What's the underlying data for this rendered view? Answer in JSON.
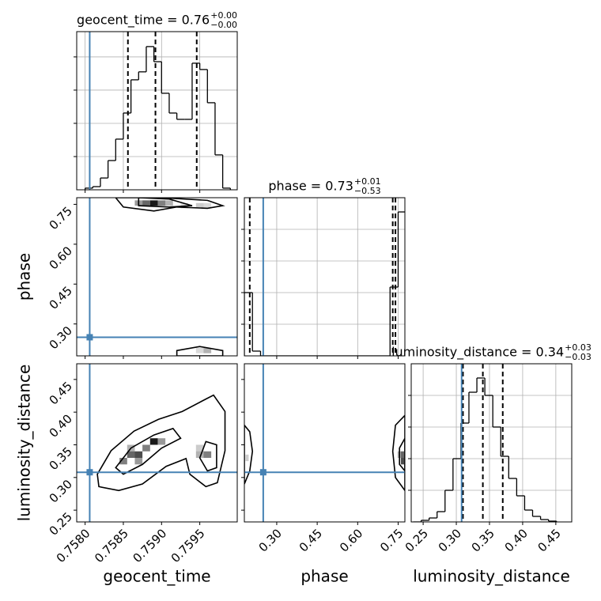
{
  "chart_data": [
    {
      "type": "histogram",
      "title": {
        "text": "geocent_time = 0.76",
        "upper": "+0.00",
        "lower": "−0.00"
      },
      "xlim": [
        0.75789,
        0.75999
      ],
      "xticks": [
        0.758,
        0.7585,
        0.759,
        0.7595
      ],
      "ylim": [
        0,
        952
      ],
      "yticks": [
        200,
        400,
        600,
        800
      ],
      "grid": true,
      "bins": [
        0.758,
        0.7581,
        0.7582,
        0.7583,
        0.7584,
        0.7585,
        0.7586,
        0.7587,
        0.7588,
        0.7589,
        0.759,
        0.7591,
        0.7592,
        0.7593,
        0.7594,
        0.7595,
        0.7596,
        0.7597,
        0.7598,
        0.7599
      ],
      "values": [
        10,
        19,
        71,
        176,
        305,
        462,
        662,
        710,
        862,
        771,
        581,
        462,
        424,
        424,
        762,
        724,
        524,
        210,
        10
      ],
      "quantiles": [
        0.75856,
        0.75892,
        0.75946
      ],
      "truth_x": 0.75806,
      "color": "#000000",
      "truth_color": "#4682b4"
    },
    {
      "type": "density",
      "ylabel": "phase",
      "xlim": [
        0.75789,
        0.75999
      ],
      "xticks": [
        0.758,
        0.7585,
        0.759,
        0.7595
      ],
      "ylim": [
        0.18,
        0.775
      ],
      "yticks": [
        {
          "value": 0.3,
          "label": "0.30"
        },
        {
          "value": 0.45,
          "label": "0.45"
        },
        {
          "value": 0.6,
          "label": "0.60"
        },
        {
          "value": 0.75,
          "label": "0.75"
        }
      ],
      "grid": false,
      "bin_width": [
        0.0001,
        0.02
      ],
      "cells": {
        "x": [
          0.7587,
          0.7588,
          0.7589,
          0.759,
          0.7591,
          0.7593,
          0.7595,
          0.7596,
          0.7595,
          0.7596
        ],
        "y": [
          0.755,
          0.755,
          0.755,
          0.755,
          0.755,
          0.745,
          0.745,
          0.745,
          0.2,
          0.2
        ],
        "values": [
          0.4,
          0.6,
          0.9,
          0.5,
          0.3,
          0.15,
          0.2,
          0.15,
          0.15,
          0.3
        ]
      },
      "contours": [
        {
          "x": [
            0.7584,
            0.759,
            0.7596,
            0.7598,
            0.7596,
            0.7592,
            0.7589,
            0.7585
          ],
          "y": [
            0.775,
            0.775,
            0.765,
            0.745,
            0.735,
            0.74,
            0.725,
            0.74
          ]
        },
        {
          "x": [
            0.7587,
            0.7591,
            0.7594,
            0.7591,
            0.7587
          ],
          "y": [
            0.775,
            0.77,
            0.745,
            0.74,
            0.745
          ]
        },
        {
          "x": [
            0.7592,
            0.7592,
            0.7595,
            0.7598,
            0.7598
          ],
          "y": [
            0.18,
            0.2,
            0.215,
            0.2,
            0.18
          ]
        }
      ],
      "truth_x": 0.75806,
      "truth_y": 0.25,
      "color": "#000000",
      "truth_color": "#4682b4"
    },
    {
      "type": "histogram",
      "title": {
        "text": "phase = 0.73",
        "upper": "+0.01",
        "lower": "−0.53"
      },
      "xlim": [
        0.18,
        0.775
      ],
      "xticks": [
        0.3,
        0.45,
        0.6,
        0.75
      ],
      "ylim": [
        0,
        2000
      ],
      "yticks": [
        400,
        800,
        1200,
        1600
      ],
      "grid": true,
      "bins": [
        0.18,
        0.21,
        0.24,
        0.27,
        0.3,
        0.33,
        0.36,
        0.39,
        0.42,
        0.45,
        0.48,
        0.51,
        0.54,
        0.57,
        0.6,
        0.63,
        0.66,
        0.69,
        0.72,
        0.75,
        0.78
      ],
      "values": [
        800,
        60,
        0,
        0,
        0,
        0,
        0,
        0,
        0,
        0,
        0,
        0,
        0,
        0,
        0,
        0,
        0,
        0,
        870,
        1820
      ],
      "quantiles": [
        0.2,
        0.73,
        0.74
      ],
      "truth_x": 0.25,
      "color": "#000000",
      "truth_color": "#4682b4"
    },
    {
      "type": "density",
      "xlabel": "geocent_time",
      "ylabel": "luminosity_distance",
      "xlim": [
        0.75789,
        0.75999
      ],
      "xticks": [
        {
          "value": 0.758,
          "label": "0.7580"
        },
        {
          "value": 0.7585,
          "label": "0.7585"
        },
        {
          "value": 0.759,
          "label": "0.7590"
        },
        {
          "value": 0.7595,
          "label": "0.7595"
        }
      ],
      "ylim": [
        0.232,
        0.474
      ],
      "yticks": [
        {
          "value": 0.25,
          "label": "0.25"
        },
        {
          "value": 0.3,
          "label": "0.30"
        },
        {
          "value": 0.35,
          "label": "0.35"
        },
        {
          "value": 0.4,
          "label": "0.40"
        },
        {
          "value": 0.45,
          "label": "0.45"
        }
      ],
      "grid": false,
      "bin_width": [
        0.0001,
        0.01
      ],
      "cells": {
        "x": [
          0.7585,
          0.7586,
          0.7587,
          0.7588,
          0.7589,
          0.759,
          0.7587,
          0.7586,
          0.7595,
          0.7596,
          0.7595
        ],
        "y": [
          0.325,
          0.335,
          0.335,
          0.345,
          0.355,
          0.355,
          0.325,
          0.345,
          0.335,
          0.335,
          0.345
        ],
        "values": [
          0.5,
          0.6,
          0.7,
          0.5,
          0.9,
          0.4,
          0.4,
          0.3,
          0.3,
          0.5,
          0.2
        ]
      },
      "contours": [
        {
          "x": [
            0.75816,
            0.75834,
            0.75864,
            0.75896,
            0.75927,
            0.75958,
            0.75968,
            0.75983,
            0.75983,
            0.75973,
            0.75958,
            0.75937,
            0.75932,
            0.75906,
            0.75875,
            0.75844,
            0.75818
          ],
          "y": [
            0.305,
            0.341,
            0.371,
            0.389,
            0.401,
            0.42,
            0.426,
            0.401,
            0.341,
            0.292,
            0.286,
            0.305,
            0.329,
            0.317,
            0.29,
            0.28,
            0.286
          ]
        },
        {
          "x": [
            0.7584,
            0.7586,
            0.7589,
            0.75915,
            0.75925,
            0.759,
            0.75875,
            0.7585
          ],
          "y": [
            0.315,
            0.345,
            0.365,
            0.375,
            0.36,
            0.345,
            0.32,
            0.305
          ]
        },
        {
          "x": [
            0.7595,
            0.75958,
            0.75972,
            0.75972,
            0.7596
          ],
          "y": [
            0.33,
            0.355,
            0.35,
            0.315,
            0.31
          ]
        }
      ],
      "truth_x": 0.75806,
      "truth_y": 0.308,
      "color": "#000000",
      "truth_color": "#4682b4"
    },
    {
      "type": "density",
      "xlabel": "phase",
      "xlim": [
        0.18,
        0.775
      ],
      "xticks": [
        {
          "value": 0.3,
          "label": "0.30"
        },
        {
          "value": 0.45,
          "label": "0.45"
        },
        {
          "value": 0.6,
          "label": "0.60"
        },
        {
          "value": 0.75,
          "label": "0.75"
        }
      ],
      "ylim": [
        0.232,
        0.474
      ],
      "yticks": [
        0.25,
        0.3,
        0.35,
        0.4,
        0.45
      ],
      "grid": false,
      "bin_width": [
        0.012,
        0.01
      ],
      "cells": {
        "x": [
          0.766,
          0.766,
          0.754,
          0.19
        ],
        "y": [
          0.325,
          0.335,
          0.335,
          0.33
        ],
        "values": [
          0.7,
          0.6,
          0.3,
          0.2
        ]
      },
      "contours": [
        {
          "x": [
            0.18,
            0.2,
            0.21,
            0.2,
            0.18
          ],
          "y": [
            0.29,
            0.31,
            0.34,
            0.37,
            0.38
          ]
        },
        {
          "x": [
            0.775,
            0.74,
            0.73,
            0.74,
            0.775
          ],
          "y": [
            0.28,
            0.3,
            0.34,
            0.38,
            0.395
          ]
        },
        {
          "x": [
            0.775,
            0.755,
            0.755,
            0.775
          ],
          "y": [
            0.31,
            0.32,
            0.345,
            0.36
          ]
        }
      ],
      "truth_x": 0.25,
      "truth_y": 0.308,
      "color": "#000000",
      "truth_color": "#4682b4"
    },
    {
      "type": "histogram",
      "xlabel": "luminosity_distance",
      "title": {
        "text": "luminosity_distance = 0.34",
        "upper": "+0.03",
        "lower": "−0.03"
      },
      "xlim": [
        0.232,
        0.474
      ],
      "xticks": [
        {
          "value": 0.25,
          "label": "0.25"
        },
        {
          "value": 0.3,
          "label": "0.30"
        },
        {
          "value": 0.35,
          "label": "0.35"
        },
        {
          "value": 0.4,
          "label": "0.40"
        },
        {
          "value": 0.45,
          "label": "0.45"
        }
      ],
      "ylim": [
        0,
        1000
      ],
      "yticks": [
        200,
        400,
        600,
        800
      ],
      "grid": true,
      "bins": [
        0.235,
        0.247,
        0.259,
        0.271,
        0.283,
        0.295,
        0.307,
        0.319,
        0.331,
        0.343,
        0.355,
        0.367,
        0.379,
        0.391,
        0.403,
        0.415,
        0.427,
        0.439,
        0.451
      ],
      "values": [
        0,
        10,
        25,
        65,
        200,
        400,
        625,
        820,
        910,
        800,
        600,
        415,
        275,
        165,
        75,
        35,
        15,
        5
      ],
      "quantiles": [
        0.31,
        0.34,
        0.37
      ],
      "truth_x": 0.308,
      "color": "#000000",
      "truth_color": "#4682b4"
    }
  ]
}
